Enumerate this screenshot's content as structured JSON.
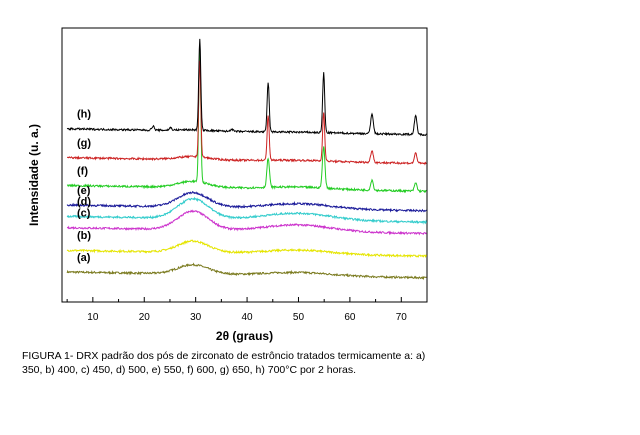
{
  "chart_data": {
    "type": "line",
    "xlabel": "2θ  (graus)",
    "ylabel": "Intensidade (u. a.)",
    "xlim": [
      4,
      75
    ],
    "x_ticks": [
      10,
      20,
      30,
      40,
      50,
      60,
      70
    ],
    "grid": false,
    "series": [
      {
        "name": "(a)",
        "color": "#7a7a1e",
        "baseline": 0.0,
        "hump": 0.45,
        "peaks": []
      },
      {
        "name": "(b)",
        "color": "#e5e500",
        "baseline": 1.05,
        "hump": 0.55,
        "peaks": []
      },
      {
        "name": "(c)",
        "color": "#cc33cc",
        "baseline": 2.15,
        "hump": 0.9,
        "peaks": []
      },
      {
        "name": "(d)",
        "color": "#33cccc",
        "baseline": 2.7,
        "hump": 0.95,
        "peaks": []
      },
      {
        "name": "(e)",
        "color": "#1a1a99",
        "baseline": 3.25,
        "hump": 0.7,
        "peaks": []
      },
      {
        "name": "(f)",
        "color": "#22cc22",
        "baseline": 4.2,
        "hump": 0.3,
        "peaks": [
          {
            "x": 30.8,
            "h": 6.5
          },
          {
            "x": 44.1,
            "h": 1.4
          },
          {
            "x": 54.9,
            "h": 2.0
          },
          {
            "x": 64.3,
            "h": 0.5
          },
          {
            "x": 72.8,
            "h": 0.4
          }
        ]
      },
      {
        "name": "(g)",
        "color": "#cc2222",
        "baseline": 5.55,
        "hump": 0.15,
        "peaks": [
          {
            "x": 30.8,
            "h": 4.7
          },
          {
            "x": 44.1,
            "h": 2.2
          },
          {
            "x": 54.9,
            "h": 2.4
          },
          {
            "x": 64.3,
            "h": 0.6
          },
          {
            "x": 72.8,
            "h": 0.5
          }
        ]
      },
      {
        "name": "(h)",
        "color": "#000000",
        "baseline": 6.95,
        "hump": 0.05,
        "peaks": [
          {
            "x": 21.7,
            "h": 0.2
          },
          {
            "x": 25.1,
            "h": 0.12
          },
          {
            "x": 30.8,
            "h": 4.4
          },
          {
            "x": 37.0,
            "h": 0.12
          },
          {
            "x": 44.1,
            "h": 2.4
          },
          {
            "x": 54.9,
            "h": 2.9
          },
          {
            "x": 64.3,
            "h": 1.0
          },
          {
            "x": 72.8,
            "h": 0.9
          }
        ]
      }
    ]
  },
  "caption": {
    "line1": "FIGURA 1- DRX  padrão dos pós de zirconato de estrôncio tratados termicamente a: a)",
    "line2": "350, b) 400, c) 450, d) 500, e) 550, f) 600, g) 650, h) 700°C por 2 horas."
  }
}
